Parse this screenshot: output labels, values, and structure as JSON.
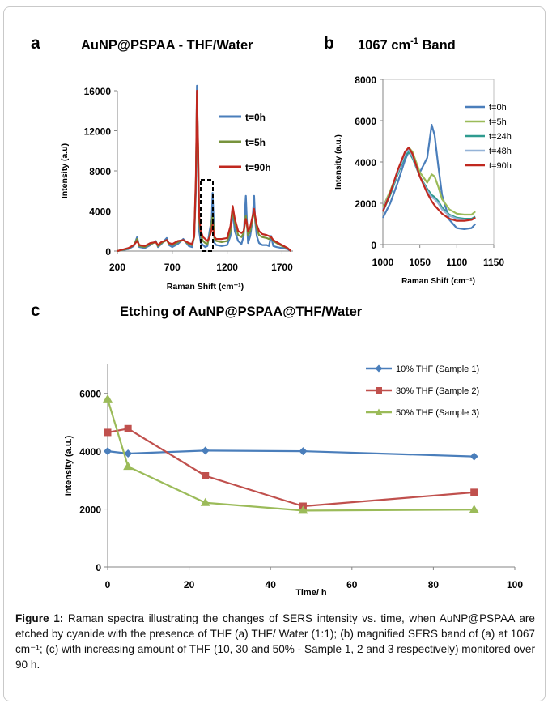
{
  "chart_data": [
    {
      "panel_letter": "a",
      "type": "line",
      "title": "AuNP@PSPAA - THF/Water",
      "xlabel": "Raman Shift (cm⁻¹)",
      "ylabel": "Intensity (a.u)",
      "xlim": [
        200,
        1800
      ],
      "ylim": [
        0,
        16000
      ],
      "xticks": [
        200,
        700,
        1200,
        1700
      ],
      "yticks": [
        0,
        4000,
        8000,
        12000,
        16000
      ],
      "legend_position": "top-right",
      "series": [
        {
          "name": "t=0h",
          "color": "#4a7ebb",
          "x": [
            200,
            300,
            350,
            380,
            400,
            450,
            500,
            550,
            570,
            600,
            650,
            670,
            700,
            750,
            800,
            850,
            880,
            900,
            915,
            925,
            935,
            945,
            960,
            980,
            1000,
            1020,
            1040,
            1060,
            1067,
            1075,
            1085,
            1100,
            1150,
            1200,
            1230,
            1250,
            1270,
            1300,
            1330,
            1350,
            1370,
            1380,
            1390,
            1410,
            1430,
            1445,
            1455,
            1470,
            1490,
            1520,
            1560,
            1580,
            1600,
            1620,
            1650,
            1700,
            1750,
            1780
          ],
          "y": [
            0,
            200,
            500,
            1400,
            400,
            300,
            600,
            1000,
            400,
            700,
            1300,
            600,
            400,
            700,
            1200,
            500,
            400,
            1500,
            6000,
            16500,
            9000,
            2000,
            800,
            600,
            400,
            500,
            2000,
            3200,
            5800,
            3500,
            800,
            600,
            500,
            600,
            1500,
            4000,
            2000,
            1000,
            700,
            1500,
            5500,
            3000,
            800,
            1500,
            3000,
            5500,
            3000,
            1500,
            800,
            600,
            600,
            500,
            1500,
            500,
            400,
            300,
            200,
            0
          ]
        },
        {
          "name": "t=5h",
          "color": "#77933c",
          "x": [
            200,
            300,
            350,
            380,
            400,
            450,
            500,
            550,
            570,
            600,
            650,
            670,
            700,
            750,
            800,
            850,
            880,
            900,
            915,
            925,
            935,
            945,
            960,
            980,
            1000,
            1020,
            1040,
            1060,
            1067,
            1075,
            1085,
            1100,
            1150,
            1200,
            1230,
            1250,
            1270,
            1300,
            1330,
            1350,
            1370,
            1380,
            1390,
            1410,
            1430,
            1445,
            1455,
            1470,
            1490,
            1520,
            1560,
            1580,
            1600,
            1620,
            1650,
            1700,
            1750,
            1780
          ],
          "y": [
            0,
            250,
            600,
            1200,
            500,
            400,
            700,
            900,
            500,
            800,
            1100,
            700,
            600,
            900,
            1100,
            700,
            600,
            1400,
            7000,
            15500,
            10000,
            3000,
            1500,
            1000,
            800,
            700,
            1500,
            2800,
            3500,
            2500,
            1200,
            1000,
            900,
            1000,
            2000,
            4200,
            2800,
            1600,
            1400,
            1800,
            3500,
            2600,
            1600,
            2000,
            3200,
            4000,
            3200,
            2200,
            1600,
            1400,
            1300,
            1200,
            1400,
            1000,
            800,
            500,
            300,
            0
          ]
        },
        {
          "name": "t=90h",
          "color": "#c0281f",
          "x": [
            200,
            300,
            350,
            380,
            400,
            450,
            500,
            550,
            570,
            600,
            650,
            670,
            700,
            750,
            800,
            850,
            880,
            900,
            915,
            925,
            935,
            945,
            960,
            980,
            1000,
            1020,
            1040,
            1060,
            1067,
            1075,
            1085,
            1100,
            1150,
            1200,
            1230,
            1250,
            1270,
            1300,
            1330,
            1350,
            1370,
            1380,
            1390,
            1410,
            1430,
            1445,
            1455,
            1470,
            1490,
            1520,
            1560,
            1580,
            1600,
            1620,
            1650,
            1700,
            1750,
            1780
          ],
          "y": [
            0,
            300,
            600,
            1000,
            600,
            500,
            800,
            900,
            600,
            900,
            1100,
            800,
            700,
            1000,
            1100,
            800,
            700,
            1500,
            7500,
            16000,
            10500,
            3500,
            2000,
            1400,
            1200,
            1000,
            1400,
            2200,
            2600,
            2000,
            1400,
            1200,
            1200,
            1300,
            2500,
            4500,
            3200,
            2000,
            1800,
            2000,
            3200,
            2800,
            2000,
            2400,
            3400,
            4200,
            3500,
            2600,
            2000,
            1700,
            1600,
            1500,
            1400,
            1100,
            900,
            600,
            300,
            0
          ]
        }
      ]
    },
    {
      "panel_letter": "b",
      "type": "line",
      "title_main": "1067 cm",
      "title_sup": "-1",
      "title_rest": " Band",
      "xlabel": "Raman Shift (cm⁻¹)",
      "ylabel": "Intensity (a.u.)",
      "xlim": [
        1000,
        1150
      ],
      "ylim": [
        0,
        8000
      ],
      "xticks": [
        1000,
        1050,
        1100,
        1150
      ],
      "yticks": [
        0,
        2000,
        4000,
        6000,
        8000
      ],
      "legend_position": "top-right",
      "series": [
        {
          "name": "t=0h",
          "color": "#4a7ebb",
          "x": [
            1000,
            1010,
            1020,
            1030,
            1035,
            1040,
            1050,
            1060,
            1066,
            1070,
            1075,
            1080,
            1090,
            1100,
            1110,
            1120,
            1125
          ],
          "y": [
            1300,
            2000,
            3000,
            4100,
            4500,
            4200,
            3500,
            4200,
            5800,
            5300,
            3800,
            2400,
            1200,
            800,
            750,
            800,
            1000
          ]
        },
        {
          "name": "t=5h",
          "color": "#9bbb59",
          "x": [
            1000,
            1010,
            1020,
            1030,
            1035,
            1040,
            1050,
            1060,
            1066,
            1070,
            1075,
            1080,
            1090,
            1100,
            1110,
            1120,
            1125
          ],
          "y": [
            1800,
            2600,
            3500,
            4400,
            4700,
            4500,
            3500,
            3000,
            3400,
            3300,
            2800,
            2200,
            1700,
            1500,
            1450,
            1450,
            1600
          ]
        },
        {
          "name": "t=24h",
          "color": "#2e9b8f",
          "x": [
            1000,
            1010,
            1020,
            1030,
            1035,
            1040,
            1050,
            1060,
            1066,
            1070,
            1075,
            1080,
            1090,
            1100,
            1110,
            1120,
            1125
          ],
          "y": [
            1600,
            2400,
            3400,
            4300,
            4500,
            4200,
            3300,
            2700,
            2400,
            2300,
            2100,
            1800,
            1450,
            1300,
            1250,
            1250,
            1350
          ]
        },
        {
          "name": "t=48h",
          "color": "#95b3d7",
          "x": [
            1000,
            1010,
            1020,
            1030,
            1035,
            1040,
            1050,
            1060,
            1066,
            1070,
            1075,
            1080,
            1090,
            1100,
            1110,
            1120,
            1125
          ],
          "y": [
            1700,
            2500,
            3500,
            4400,
            4600,
            4300,
            3300,
            2600,
            2300,
            2200,
            2000,
            1700,
            1400,
            1250,
            1200,
            1200,
            1300
          ]
        },
        {
          "name": "t=90h",
          "color": "#c0281f",
          "x": [
            1000,
            1010,
            1020,
            1030,
            1035,
            1040,
            1050,
            1060,
            1066,
            1070,
            1075,
            1080,
            1090,
            1100,
            1110,
            1120,
            1125
          ],
          "y": [
            1600,
            2500,
            3600,
            4500,
            4700,
            4400,
            3300,
            2500,
            2100,
            1900,
            1700,
            1500,
            1250,
            1150,
            1150,
            1200,
            1300
          ]
        }
      ]
    },
    {
      "panel_letter": "c",
      "type": "line",
      "title": "Etching of AuNP@PSPAA@THF/Water",
      "xlabel": "Time/ h",
      "ylabel": "Intensity (a.u.)",
      "xlim": [
        0,
        100
      ],
      "ylim": [
        0,
        7000
      ],
      "xticks": [
        0,
        20,
        40,
        60,
        80,
        100
      ],
      "yticks": [
        0,
        2000,
        4000,
        6000
      ],
      "legend_position": "top-right",
      "series": [
        {
          "name": "10% THF (Sample 1)",
          "color": "#4a7ebb",
          "marker": "diamond",
          "x": [
            0,
            5,
            24,
            48,
            90
          ],
          "y": [
            4000,
            3920,
            4020,
            4000,
            3820
          ]
        },
        {
          "name": "30% THF (Sample 2)",
          "color": "#c0504d",
          "marker": "square",
          "x": [
            0,
            5,
            24,
            48,
            90
          ],
          "y": [
            4650,
            4780,
            3150,
            2100,
            2580
          ]
        },
        {
          "name": "50% THF (Sample 3)",
          "color": "#9bbb59",
          "marker": "triangle",
          "x": [
            0,
            5,
            24,
            48,
            90
          ],
          "y": [
            5800,
            3470,
            2220,
            1950,
            1980
          ]
        }
      ]
    }
  ],
  "caption": {
    "label": "Figure 1:",
    "text": " Raman spectra illustrating the changes of SERS intensity vs. time, when AuNP@PSPAA are etched by cyanide with the presence of THF (a) THF/ Water (1:1); (b) magnified SERS band of (a) at 1067 cm⁻¹; (c) with increasing amount of THF (10, 30 and 50% - Sample 1, 2 and 3 respectively) monitored over 90 h."
  }
}
